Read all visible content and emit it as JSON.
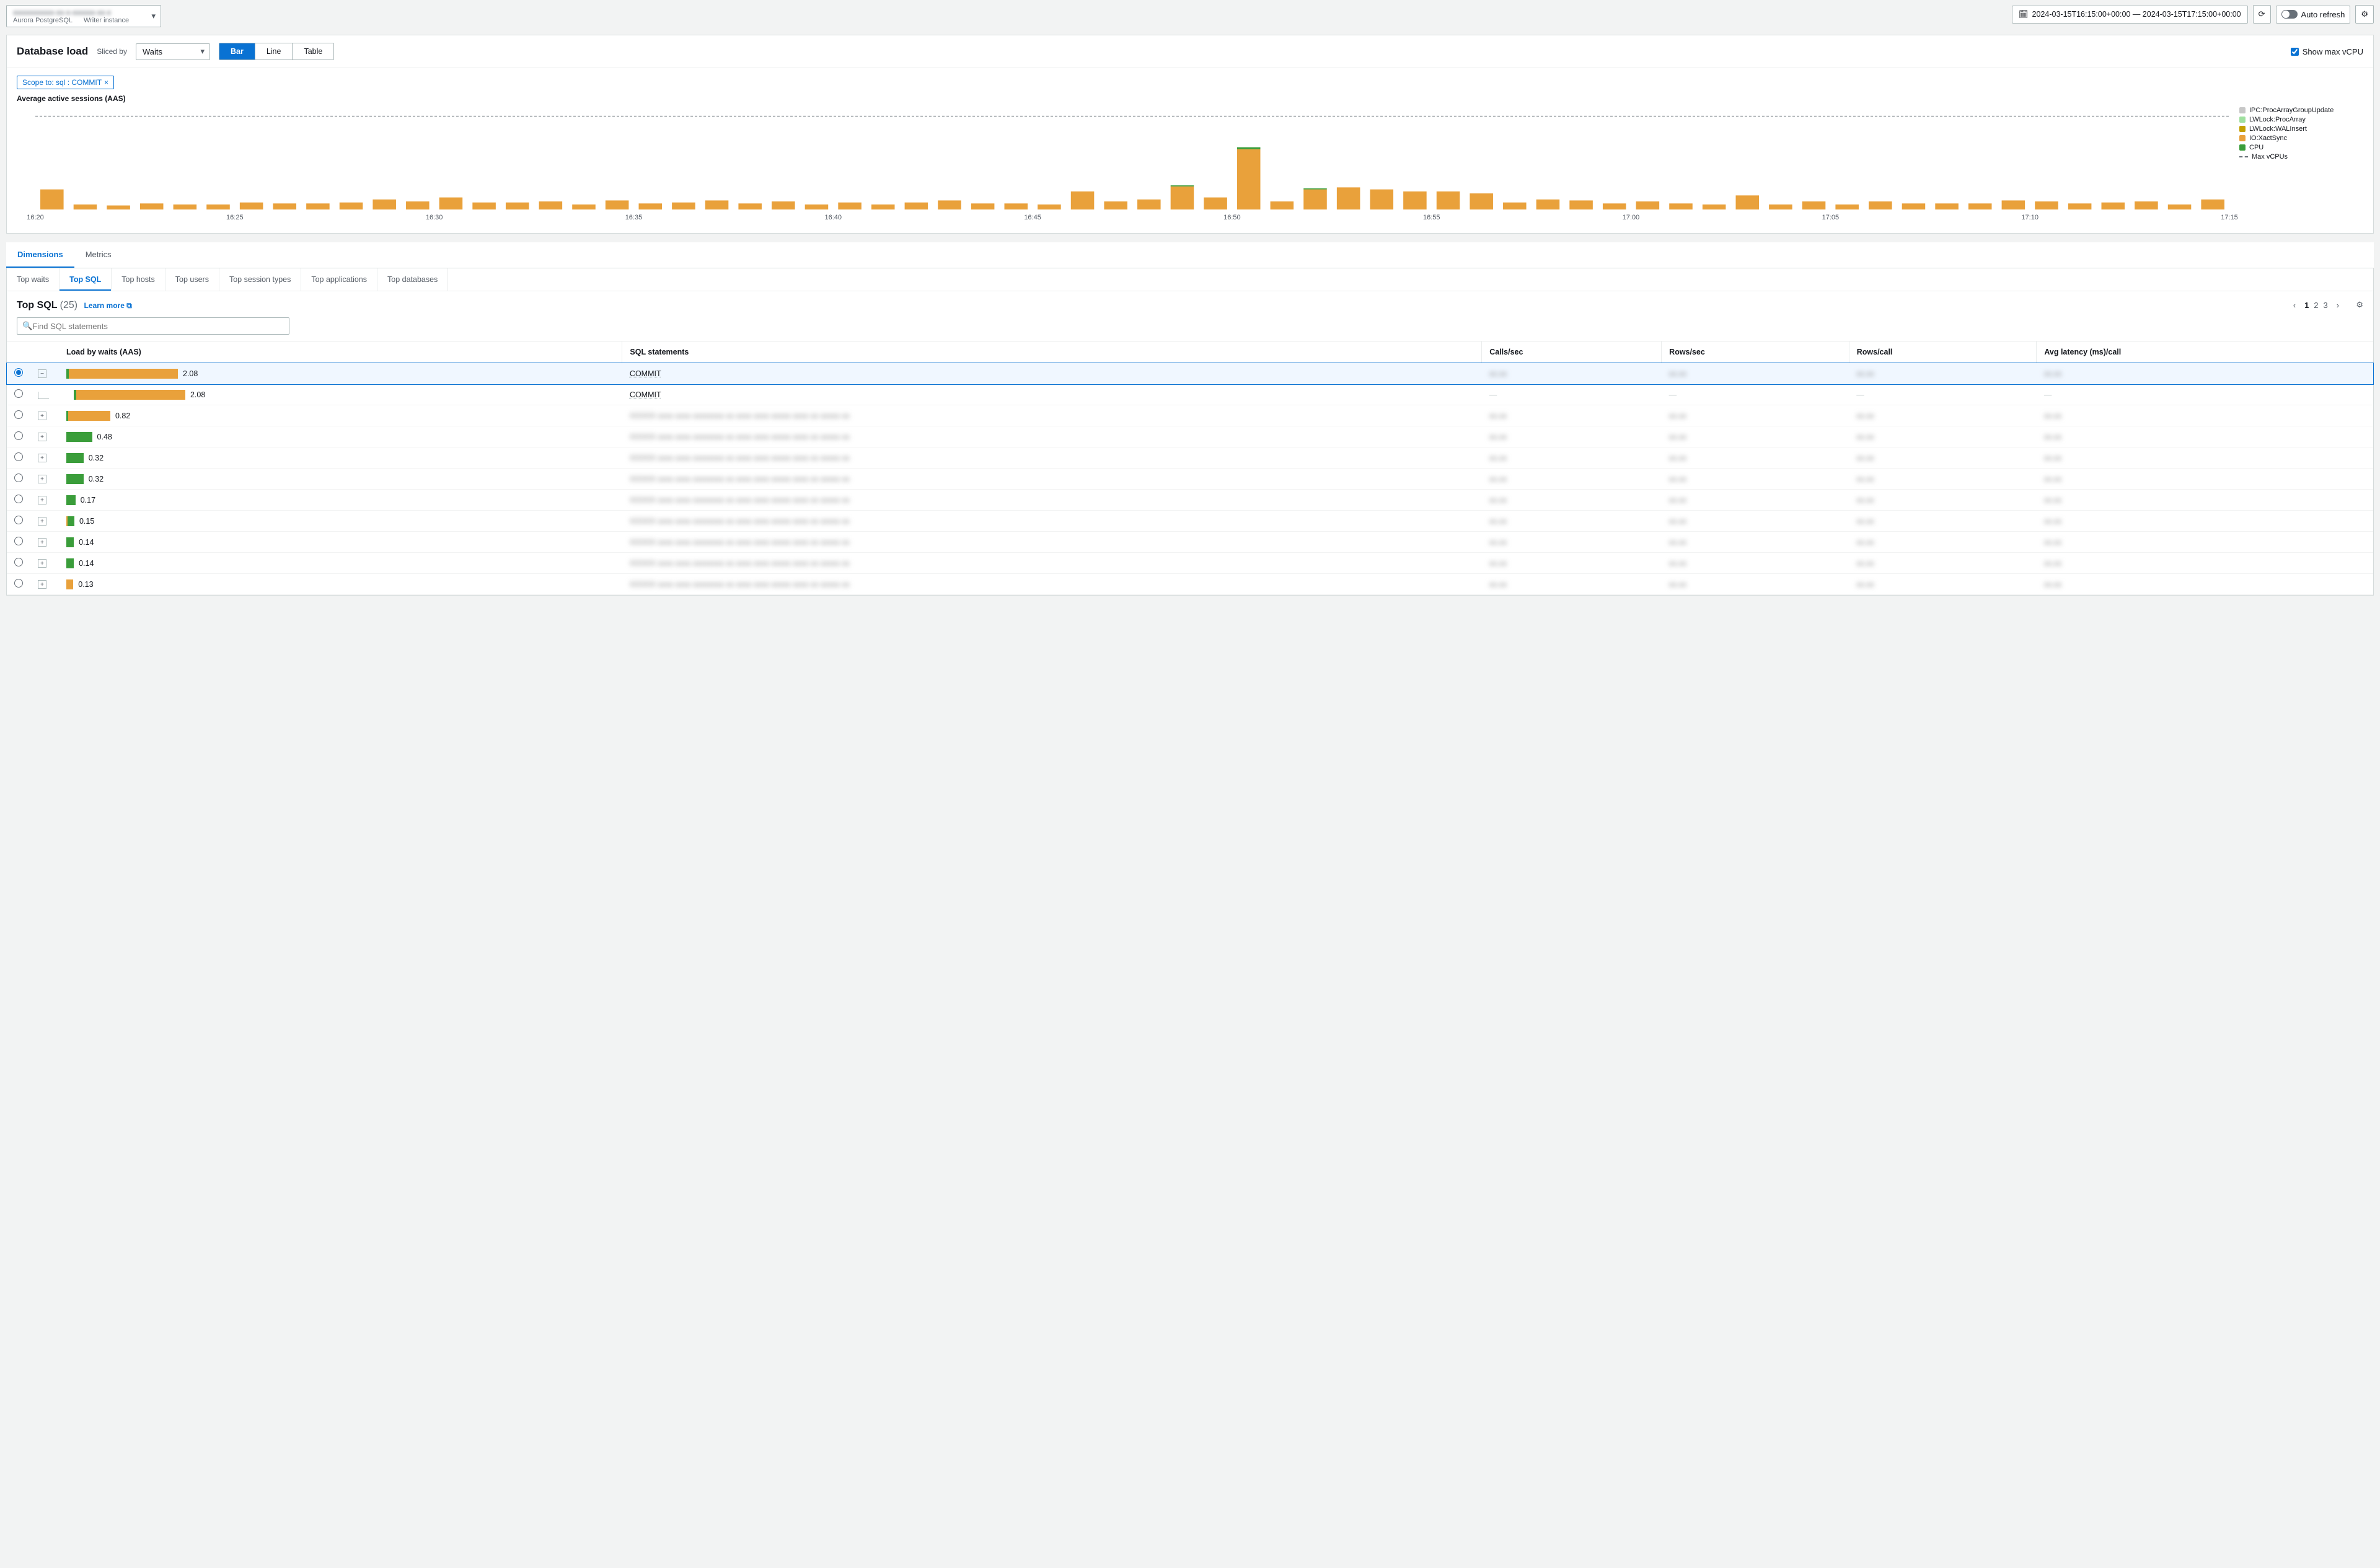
{
  "header": {
    "db_name_blur": "xxxxxxxxxxx-xx-x-xxxxxx-xx-x",
    "engine": "Aurora PostgreSQL",
    "role": "Writer instance",
    "timerange": "2024-03-15T16:15:00+00:00 — 2024-03-15T17:15:00+00:00",
    "auto_refresh": "Auto refresh"
  },
  "load": {
    "title": "Database load",
    "sliced_by": "Sliced by",
    "slice_value": "Waits",
    "view_modes": [
      "Bar",
      "Line",
      "Table"
    ],
    "active_mode": "Bar",
    "show_max_label": "Show max vCPU",
    "scope_tag": "Scope to: sql : COMMIT",
    "chart_title": "Average active sessions (AAS)",
    "legend": [
      {
        "label": "IPC:ProcArrayGroupUpdate",
        "color": "#c7c7c7"
      },
      {
        "label": "LWLock:ProcArray",
        "color": "#9fe09f"
      },
      {
        "label": "LWLock:WALInsert",
        "color": "#c4a000"
      },
      {
        "label": "IO:XactSync",
        "color": "#e9a13b"
      },
      {
        "label": "CPU",
        "color": "#3a9d3a"
      },
      {
        "label": "Max vCPUs",
        "dash": true
      }
    ],
    "chart": {
      "max_vcpu_y": 0.93,
      "y_max": 1.0,
      "x_labels": [
        "16:20",
        "16:25",
        "16:30",
        "16:35",
        "16:40",
        "16:45",
        "16:50",
        "16:55",
        "17:00",
        "17:05",
        "17:10",
        "17:15"
      ],
      "bars": [
        {
          "io": 0.2,
          "cpu": 0.0
        },
        {
          "io": 0.05,
          "cpu": 0.0
        },
        {
          "io": 0.04,
          "cpu": 0.0
        },
        {
          "io": 0.06,
          "cpu": 0.0
        },
        {
          "io": 0.05,
          "cpu": 0.0
        },
        {
          "io": 0.05,
          "cpu": 0.0
        },
        {
          "io": 0.07,
          "cpu": 0.0
        },
        {
          "io": 0.06,
          "cpu": 0.0
        },
        {
          "io": 0.06,
          "cpu": 0.0
        },
        {
          "io": 0.07,
          "cpu": 0.0
        },
        {
          "io": 0.1,
          "cpu": 0.0
        },
        {
          "io": 0.08,
          "cpu": 0.0
        },
        {
          "io": 0.12,
          "cpu": 0.0
        },
        {
          "io": 0.07,
          "cpu": 0.0
        },
        {
          "io": 0.07,
          "cpu": 0.0
        },
        {
          "io": 0.08,
          "cpu": 0.0
        },
        {
          "io": 0.05,
          "cpu": 0.0
        },
        {
          "io": 0.09,
          "cpu": 0.0
        },
        {
          "io": 0.06,
          "cpu": 0.0
        },
        {
          "io": 0.07,
          "cpu": 0.0
        },
        {
          "io": 0.09,
          "cpu": 0.0
        },
        {
          "io": 0.06,
          "cpu": 0.0
        },
        {
          "io": 0.08,
          "cpu": 0.0
        },
        {
          "io": 0.05,
          "cpu": 0.0
        },
        {
          "io": 0.07,
          "cpu": 0.0
        },
        {
          "io": 0.05,
          "cpu": 0.0
        },
        {
          "io": 0.07,
          "cpu": 0.0
        },
        {
          "io": 0.09,
          "cpu": 0.0
        },
        {
          "io": 0.06,
          "cpu": 0.0
        },
        {
          "io": 0.06,
          "cpu": 0.0
        },
        {
          "io": 0.05,
          "cpu": 0.0
        },
        {
          "io": 0.18,
          "cpu": 0.0
        },
        {
          "io": 0.08,
          "cpu": 0.0
        },
        {
          "io": 0.1,
          "cpu": 0.0
        },
        {
          "io": 0.23,
          "cpu": 0.01
        },
        {
          "io": 0.12,
          "cpu": 0.0
        },
        {
          "io": 0.6,
          "cpu": 0.02
        },
        {
          "io": 0.08,
          "cpu": 0.0
        },
        {
          "io": 0.2,
          "cpu": 0.01
        },
        {
          "io": 0.22,
          "cpu": 0.0
        },
        {
          "io": 0.2,
          "cpu": 0.0
        },
        {
          "io": 0.18,
          "cpu": 0.0
        },
        {
          "io": 0.18,
          "cpu": 0.0
        },
        {
          "io": 0.16,
          "cpu": 0.0
        },
        {
          "io": 0.07,
          "cpu": 0.0
        },
        {
          "io": 0.1,
          "cpu": 0.0
        },
        {
          "io": 0.09,
          "cpu": 0.0
        },
        {
          "io": 0.06,
          "cpu": 0.0
        },
        {
          "io": 0.08,
          "cpu": 0.0
        },
        {
          "io": 0.06,
          "cpu": 0.0
        },
        {
          "io": 0.05,
          "cpu": 0.0
        },
        {
          "io": 0.14,
          "cpu": 0.0
        },
        {
          "io": 0.05,
          "cpu": 0.0
        },
        {
          "io": 0.08,
          "cpu": 0.0
        },
        {
          "io": 0.05,
          "cpu": 0.0
        },
        {
          "io": 0.08,
          "cpu": 0.0
        },
        {
          "io": 0.06,
          "cpu": 0.0
        },
        {
          "io": 0.06,
          "cpu": 0.0
        },
        {
          "io": 0.06,
          "cpu": 0.0
        },
        {
          "io": 0.09,
          "cpu": 0.0
        },
        {
          "io": 0.08,
          "cpu": 0.0
        },
        {
          "io": 0.06,
          "cpu": 0.0
        },
        {
          "io": 0.07,
          "cpu": 0.0
        },
        {
          "io": 0.08,
          "cpu": 0.0
        },
        {
          "io": 0.05,
          "cpu": 0.0
        },
        {
          "io": 0.1,
          "cpu": 0.0
        }
      ],
      "colors": {
        "io": "#e9a13b",
        "cpu": "#3a9d3a"
      }
    }
  },
  "main_tabs": {
    "items": [
      "Dimensions",
      "Metrics"
    ],
    "active": "Dimensions"
  },
  "sub_tabs": {
    "items": [
      "Top waits",
      "Top SQL",
      "Top hosts",
      "Top users",
      "Top session types",
      "Top applications",
      "Top databases"
    ],
    "active": "Top SQL"
  },
  "sql": {
    "heading": "Top SQL",
    "count": "(25)",
    "learn": "Learn more",
    "search_ph": "Find SQL statements",
    "pages": [
      "1",
      "2",
      "3"
    ],
    "cur_page": "1",
    "columns": [
      "Load by waits (AAS)",
      "SQL statements",
      "Calls/sec",
      "Rows/sec",
      "Rows/call",
      "Avg latency (ms)/call"
    ],
    "max_aas": 2.08,
    "rows": [
      {
        "sel": true,
        "expand": "minus",
        "aas": 2.08,
        "segs": [
          {
            "c": "#3a9d3a",
            "w": 0.02
          },
          {
            "c": "#e9a13b",
            "w": 0.98
          }
        ],
        "sql": "COMMIT",
        "blurcols": true
      },
      {
        "sel": false,
        "expand": "tree",
        "aas": 2.08,
        "segs": [
          {
            "c": "#3a9d3a",
            "w": 0.02
          },
          {
            "c": "#e9a13b",
            "w": 0.98
          }
        ],
        "sql": "COMMIT",
        "blurcols": false,
        "dashcols": true
      },
      {
        "sel": false,
        "expand": "plus",
        "aas": 0.82,
        "segs": [
          {
            "c": "#3a9d3a",
            "w": 0.04
          },
          {
            "c": "#e9a13b",
            "w": 0.96
          }
        ],
        "sql_blur": true,
        "blurcols": true
      },
      {
        "sel": false,
        "expand": "plus",
        "aas": 0.48,
        "segs": [
          {
            "c": "#3a9d3a",
            "w": 1.0
          }
        ],
        "sql_blur": true,
        "blurcols": true
      },
      {
        "sel": false,
        "expand": "plus",
        "aas": 0.32,
        "segs": [
          {
            "c": "#3a9d3a",
            "w": 1.0
          }
        ],
        "sql_blur": true,
        "blurcols": true
      },
      {
        "sel": false,
        "expand": "plus",
        "aas": 0.32,
        "segs": [
          {
            "c": "#3a9d3a",
            "w": 1.0
          }
        ],
        "sql_blur": true,
        "blurcols": true
      },
      {
        "sel": false,
        "expand": "plus",
        "aas": 0.17,
        "segs": [
          {
            "c": "#3a9d3a",
            "w": 1.0
          }
        ],
        "sql_blur": true,
        "blurcols": true
      },
      {
        "sel": false,
        "expand": "plus",
        "aas": 0.15,
        "segs": [
          {
            "c": "#e9a13b",
            "w": 0.15
          },
          {
            "c": "#3a9d3a",
            "w": 0.85
          }
        ],
        "sql_blur": true,
        "blurcols": true
      },
      {
        "sel": false,
        "expand": "plus",
        "aas": 0.14,
        "segs": [
          {
            "c": "#3a9d3a",
            "w": 1.0
          }
        ],
        "sql_blur": true,
        "blurcols": true
      },
      {
        "sel": false,
        "expand": "plus",
        "aas": 0.14,
        "segs": [
          {
            "c": "#3a9d3a",
            "w": 1.0
          }
        ],
        "sql_blur": true,
        "blurcols": true
      },
      {
        "sel": false,
        "expand": "plus",
        "aas": 0.13,
        "segs": [
          {
            "c": "#e9a13b",
            "w": 1.0
          }
        ],
        "sql_blur": true,
        "blurcols": true
      }
    ]
  }
}
